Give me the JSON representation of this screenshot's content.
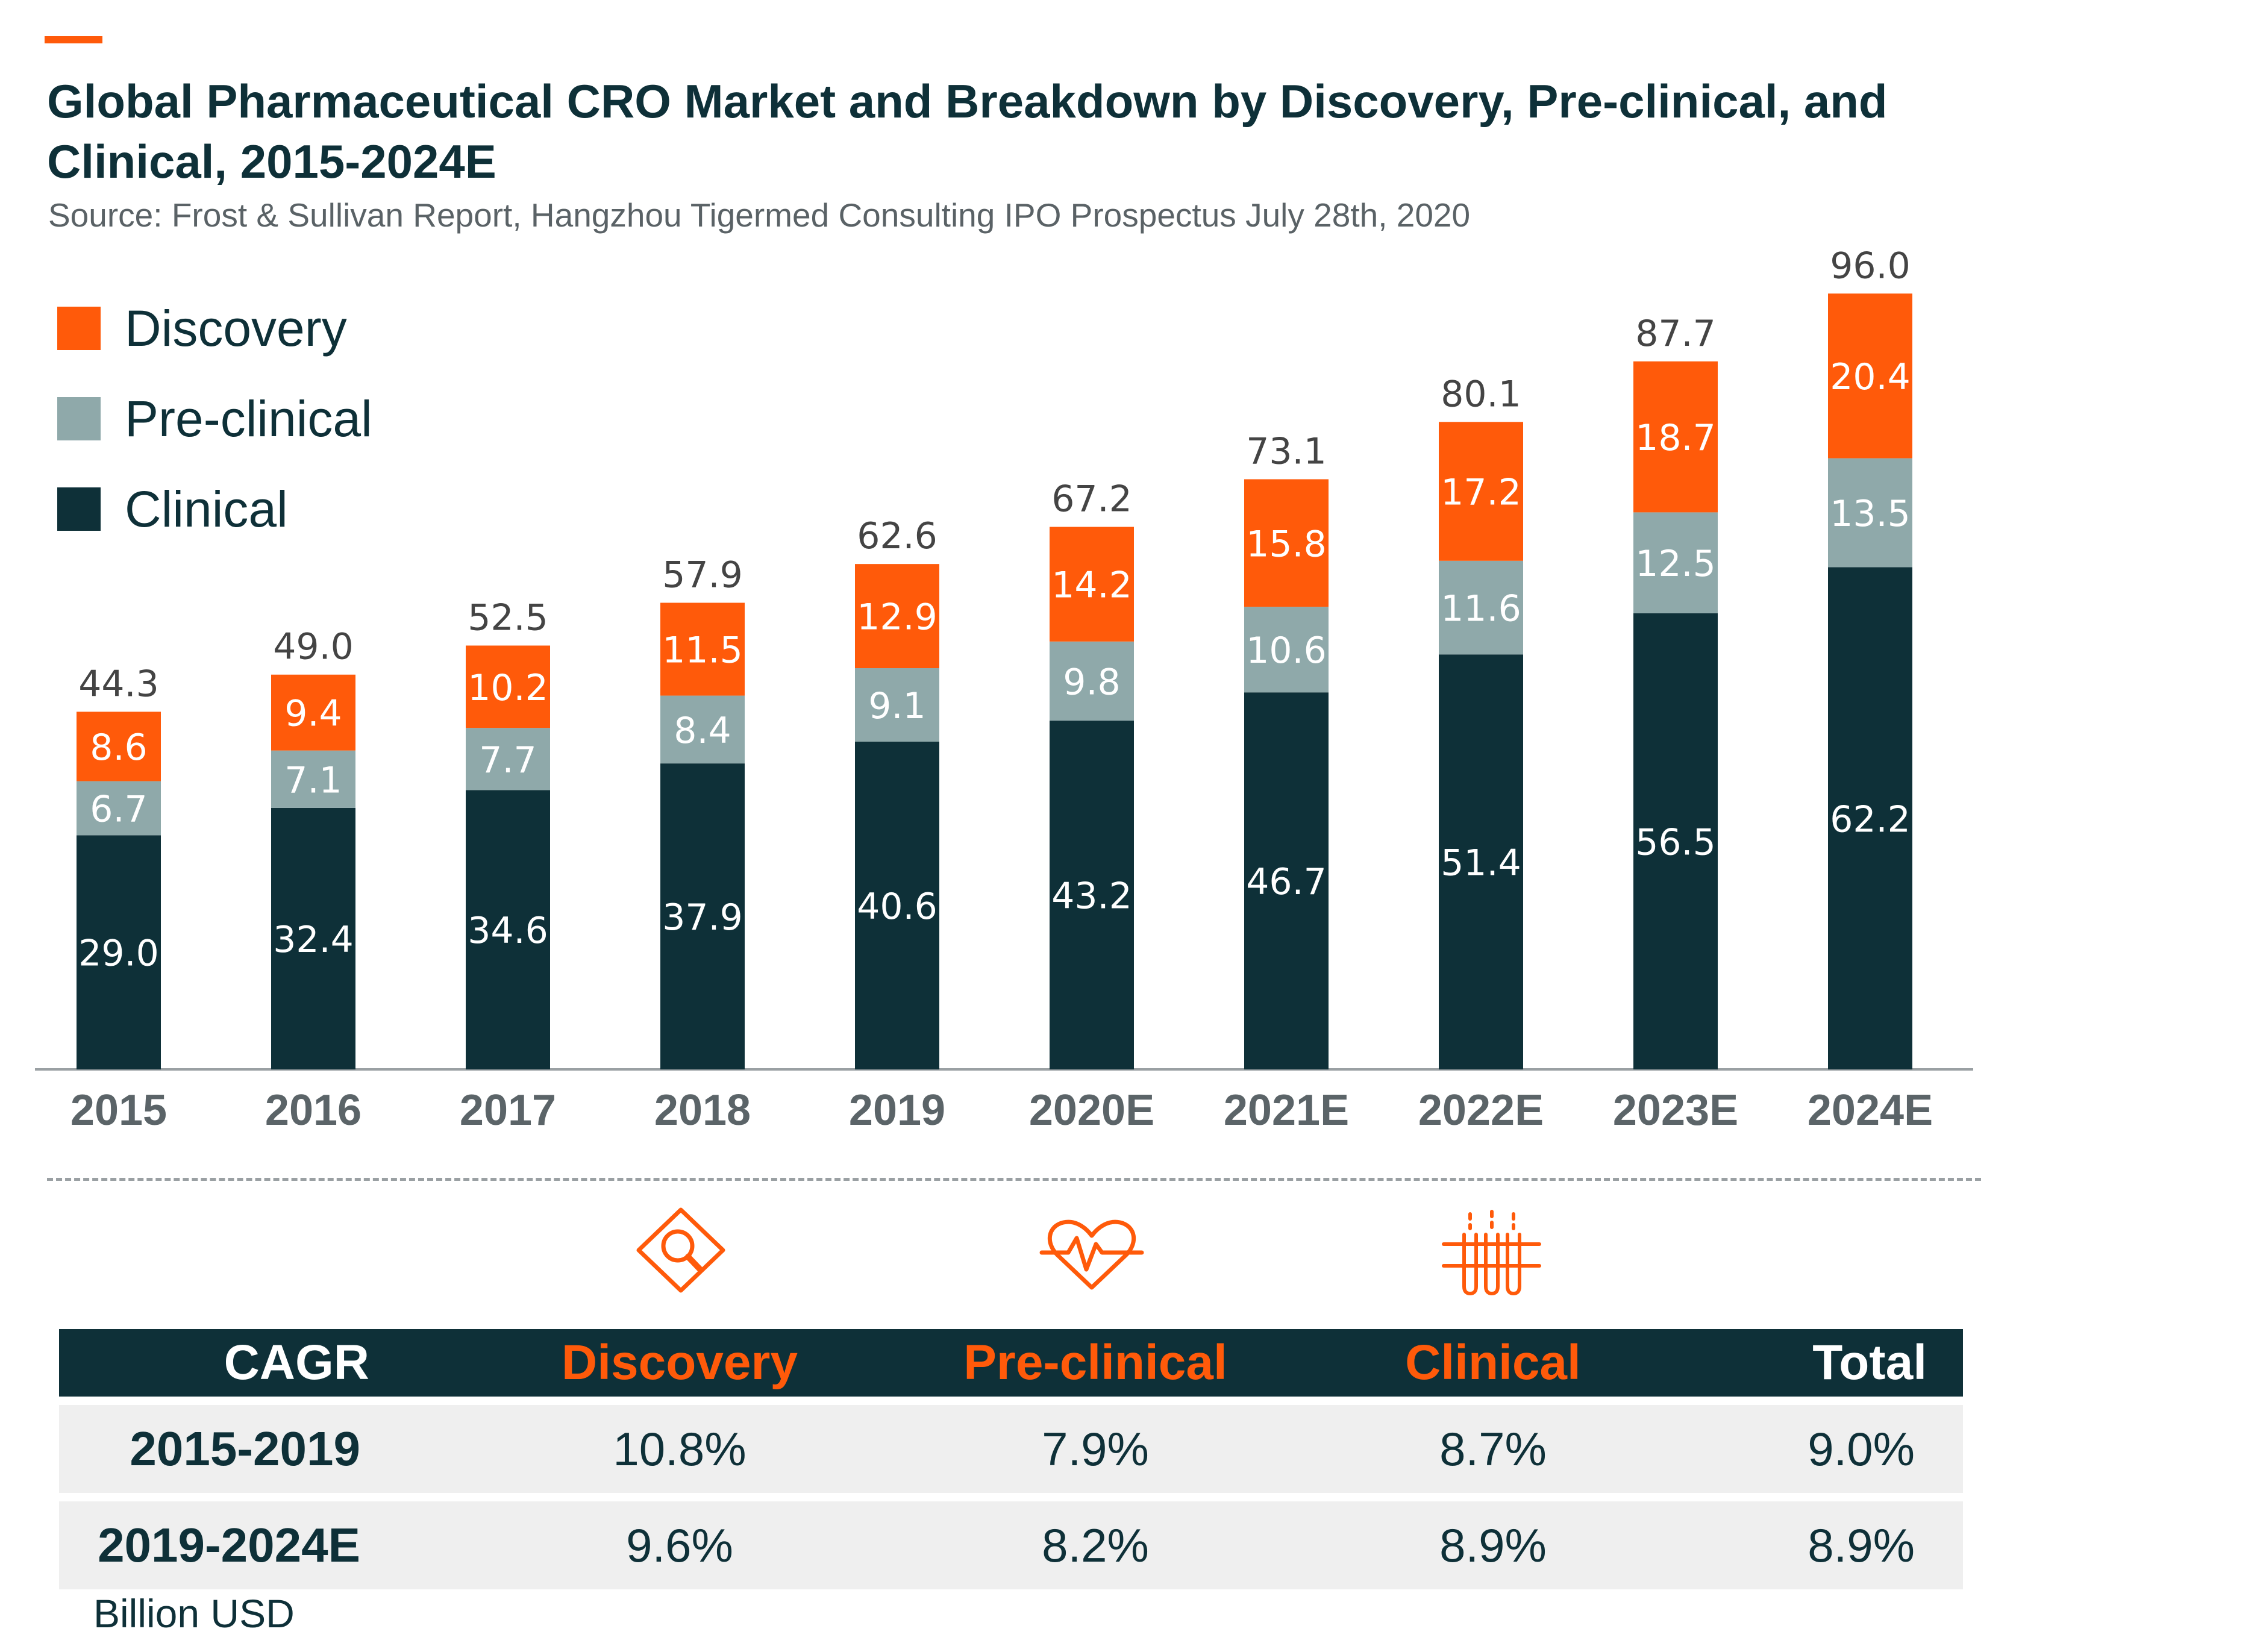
{
  "title": "Global Pharmaceutical CRO Market and Breakdown by Discovery, Pre-clinical, and Clinical, 2015-2024E",
  "source": "Source: Frost & Sullivan Report, Hangzhou Tigermed Consulting IPO Prospectus July 28th, 2020",
  "unit_label": "Billion USD",
  "colors": {
    "accent": "#ff5a0a",
    "discovery": "#ff5a0a",
    "preclinical": "#8fa9aa",
    "clinical": "#0e3038",
    "axis": "#9aa0a3",
    "total_label": "#444444"
  },
  "legend": [
    {
      "name": "Discovery",
      "color": "#ff5a0a"
    },
    {
      "name": "Pre-clinical",
      "color": "#8fa9aa"
    },
    {
      "name": "Clinical",
      "color": "#0e3038"
    }
  ],
  "chart_data": {
    "type": "bar",
    "stacked": true,
    "title": "Global Pharmaceutical CRO Market and Breakdown by Discovery, Pre-clinical, and Clinical, 2015-2024E",
    "categories": [
      "2015",
      "2016",
      "2017",
      "2018",
      "2019",
      "2020E",
      "2021E",
      "2022E",
      "2023E",
      "2024E"
    ],
    "series": [
      {
        "name": "Clinical",
        "color": "#0e3038",
        "values": [
          29.0,
          32.4,
          34.6,
          37.9,
          40.6,
          43.2,
          46.7,
          51.4,
          56.5,
          62.2
        ]
      },
      {
        "name": "Pre-clinical",
        "color": "#8fa9aa",
        "values": [
          6.7,
          7.1,
          7.7,
          8.4,
          9.1,
          9.8,
          10.6,
          11.6,
          12.5,
          13.5
        ]
      },
      {
        "name": "Discovery",
        "color": "#ff5a0a",
        "values": [
          8.6,
          9.4,
          10.2,
          11.5,
          12.9,
          14.2,
          15.8,
          17.2,
          18.7,
          20.4
        ]
      }
    ],
    "totals": [
      44.3,
      49.0,
      52.5,
      57.9,
      62.6,
      67.2,
      73.1,
      80.1,
      87.7,
      96.0
    ],
    "ylim": [
      0,
      100
    ],
    "grid": false,
    "legend_position": "top-left",
    "xlabel": "",
    "ylabel": ""
  },
  "cagr_table": {
    "headers": [
      "CAGR",
      "Discovery",
      "Pre-clinical",
      "Clinical",
      "Total"
    ],
    "rows": [
      {
        "label": "2015-2019",
        "discovery": "10.8%",
        "preclinical": "7.9%",
        "clinical": "8.7%",
        "total": "9.0%"
      },
      {
        "label": "2019-2024E",
        "discovery": "9.6%",
        "preclinical": "8.2%",
        "clinical": "8.9%",
        "total": "8.9%"
      }
    ]
  },
  "icons": {
    "discovery": "magnifier-diamond-icon",
    "preclinical": "heart-pulse-icon",
    "clinical": "test-tubes-icon"
  }
}
